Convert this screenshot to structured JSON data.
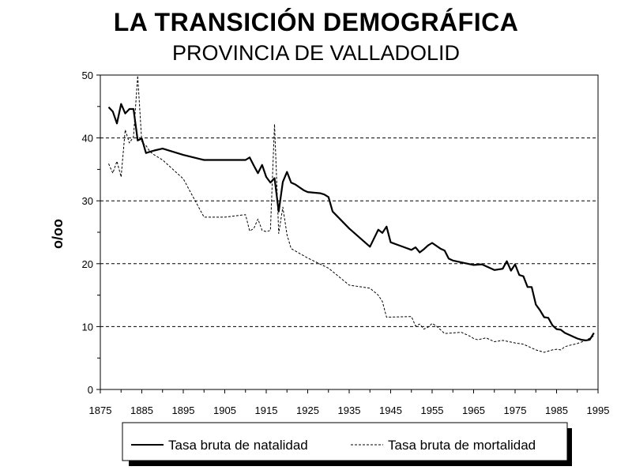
{
  "chart_data": {
    "type": "line",
    "title": "LA TRANSICIÓN DEMOGRÁFICA",
    "subtitle": "PROVINCIA DE VALLADOLID",
    "ylabel": "o/oo",
    "xlabel": "",
    "xlim": [
      1875,
      1995
    ],
    "ylim": [
      0,
      50
    ],
    "x_ticks": [
      1875,
      1885,
      1895,
      1905,
      1915,
      1925,
      1935,
      1945,
      1955,
      1965,
      1975,
      1985,
      1995
    ],
    "y_ticks": [
      0,
      10,
      20,
      30,
      40,
      50
    ],
    "grid": "horizontal dashed",
    "legend_position": "bottom",
    "series": [
      {
        "name": "Tasa bruta de natalidad",
        "style": "solid-thick",
        "color": "#000000",
        "x": [
          1877,
          1878,
          1879,
          1880,
          1881,
          1882,
          1883,
          1884,
          1885,
          1886,
          1887,
          1888,
          1890,
          1895,
          1900,
          1905,
          1910,
          1911,
          1912,
          1913,
          1914,
          1915,
          1916,
          1917,
          1918,
          1919,
          1920,
          1921,
          1922,
          1924,
          1925,
          1928,
          1929,
          1930,
          1931,
          1935,
          1940,
          1942,
          1943,
          1944,
          1945,
          1950,
          1951,
          1952,
          1953,
          1954,
          1955,
          1957,
          1958,
          1959,
          1960,
          1965,
          1967,
          1970,
          1972,
          1973,
          1974,
          1975,
          1976,
          1977,
          1978,
          1979,
          1980,
          1981,
          1982,
          1983,
          1984,
          1985,
          1986,
          1987,
          1988,
          1989,
          1990,
          1991,
          1992,
          1993,
          1994
        ],
        "y": [
          44.9,
          44.2,
          42.3,
          45.4,
          43.9,
          44.6,
          44.6,
          39.6,
          39.9,
          37.6,
          37.8,
          38.0,
          38.3,
          37.3,
          36.5,
          36.5,
          36.5,
          36.9,
          35.6,
          34.4,
          35.7,
          33.8,
          32.9,
          33.6,
          28.3,
          33.0,
          34.6,
          32.9,
          32.6,
          31.7,
          31.4,
          31.2,
          31.0,
          30.6,
          28.3,
          25.6,
          22.7,
          25.4,
          24.9,
          25.9,
          23.4,
          22.2,
          22.6,
          21.8,
          22.3,
          22.9,
          23.3,
          22.4,
          22.1,
          20.8,
          20.5,
          19.8,
          19.9,
          19.0,
          19.2,
          20.4,
          18.9,
          19.9,
          18.2,
          18.0,
          16.3,
          16.3,
          13.5,
          12.6,
          11.5,
          11.4,
          10.2,
          9.6,
          9.5,
          9.0,
          8.7,
          8.4,
          8.1,
          7.9,
          7.8,
          7.9,
          9.0
        ]
      },
      {
        "name": "Tasa bruta de mortalidad",
        "style": "dashed-thin",
        "color": "#000000",
        "x": [
          1877,
          1878,
          1879,
          1880,
          1881,
          1882,
          1883,
          1884,
          1885,
          1886,
          1887,
          1888,
          1890,
          1895,
          1900,
          1905,
          1910,
          1911,
          1912,
          1913,
          1914,
          1915,
          1916,
          1917,
          1918,
          1919,
          1920,
          1921,
          1925,
          1930,
          1935,
          1940,
          1942,
          1943,
          1944,
          1950,
          1951,
          1952,
          1953,
          1954,
          1955,
          1956,
          1958,
          1960,
          1962,
          1964,
          1965,
          1966,
          1968,
          1970,
          1972,
          1975,
          1977,
          1980,
          1982,
          1984,
          1985,
          1986,
          1987,
          1988,
          1990,
          1992,
          1994
        ],
        "y": [
          35.9,
          34.4,
          36.3,
          33.8,
          41.3,
          39.2,
          40.2,
          49.9,
          39.3,
          38.8,
          37.8,
          37.3,
          36.5,
          33.5,
          27.4,
          27.4,
          27.8,
          25.2,
          25.6,
          27.1,
          25.3,
          25.1,
          25.3,
          42.2,
          24.8,
          29.0,
          24.6,
          22.4,
          20.9,
          19.3,
          16.6,
          16.1,
          15.0,
          14.0,
          11.5,
          11.6,
          10.1,
          10.4,
          9.6,
          9.9,
          10.5,
          10.1,
          8.9,
          9.0,
          9.1,
          8.5,
          8.1,
          7.9,
          8.2,
          7.6,
          7.8,
          7.4,
          7.2,
          6.3,
          5.9,
          6.3,
          6.4,
          6.3,
          6.8,
          7.0,
          7.3,
          7.8,
          8.5
        ]
      }
    ]
  }
}
